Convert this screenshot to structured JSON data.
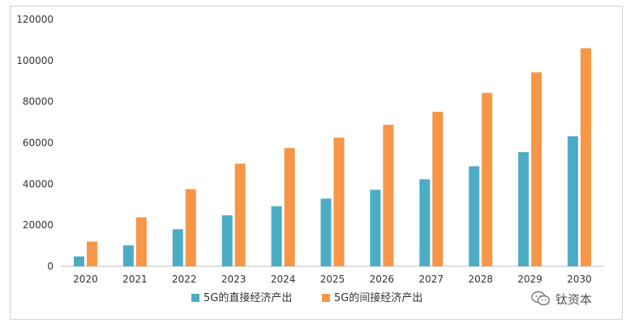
{
  "chart_data": {
    "type": "bar",
    "categories": [
      "2020",
      "2021",
      "2022",
      "2023",
      "2024",
      "2025",
      "2026",
      "2027",
      "2028",
      "2029",
      "2030"
    ],
    "series": [
      {
        "name": "5G的直接经济产出",
        "color": "#4BACC6",
        "values": [
          4800,
          10200,
          18000,
          24800,
          29200,
          32900,
          37200,
          42300,
          48600,
          55500,
          63200
        ]
      },
      {
        "name": "5G的间接经济产出",
        "color": "#F79646",
        "values": [
          12000,
          23800,
          37500,
          49900,
          57500,
          62500,
          68800,
          75100,
          84300,
          94300,
          106000
        ]
      }
    ],
    "title": "",
    "xlabel": "",
    "ylabel": "",
    "ylim": [
      0,
      120000
    ],
    "yticks": [
      "0",
      "20000",
      "40000",
      "60000",
      "80000",
      "100000",
      "120000"
    ],
    "grid": false,
    "legend_position": "bottom"
  },
  "watermark": {
    "text": "钛资本",
    "icon": "wechat-icon"
  }
}
